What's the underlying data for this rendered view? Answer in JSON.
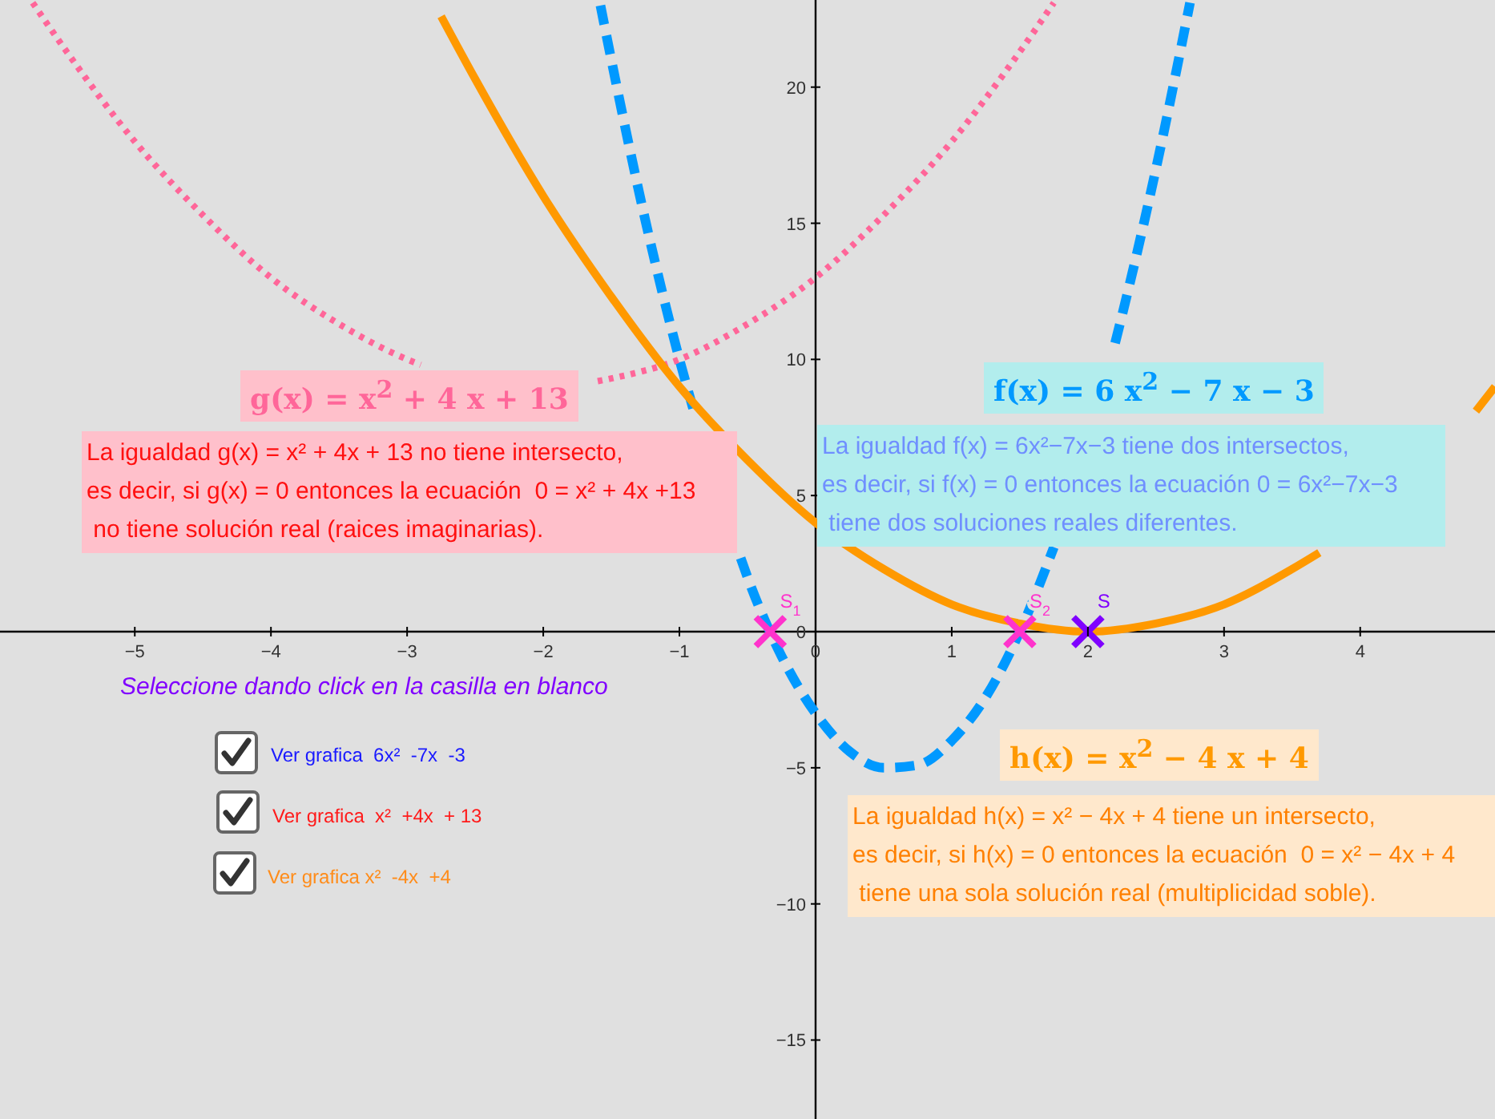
{
  "chart_data": {
    "type": "line",
    "xlim": [
      -5.99,
      4.99
    ],
    "ylim": [
      -17.9,
      23.2
    ],
    "xticks": [
      -5,
      -4,
      -3,
      -2,
      -1,
      0,
      1,
      2,
      3,
      4
    ],
    "yticks": [
      -15,
      -10,
      -5,
      0,
      5,
      10,
      15,
      20
    ],
    "marker": "none",
    "series": [
      {
        "name": "f(x) = 6 x$^{2}$ − 7 x − 3",
        "color": "#0099ff",
        "line_style": "dashed",
        "x": [
          -1.58,
          -1.5,
          -1.25,
          -1,
          -0.9,
          -0.75,
          -0.55,
          -0.5,
          -0.25,
          0,
          0.25,
          0.5,
          0.75,
          1,
          1.25,
          1.5,
          1.75,
          2,
          2.2,
          2.25,
          2.5,
          2.75
        ],
        "values": [
          23.0,
          21,
          15.1,
          10,
          8.2,
          null,
          2.7,
          2,
          -0.9,
          -3,
          -4.4,
          -5,
          -4.9,
          -4,
          -2.4,
          0,
          3.1,
          null,
          10.6,
          11.6,
          17,
          23.1
        ]
      },
      {
        "name": "g(x) = x$^{2}$ + 4 x + 13",
        "color": "#ff6699",
        "line_style": "dotted",
        "x": [
          -5.75,
          -5.5,
          -5,
          -4.5,
          -4,
          -3.5,
          -3,
          -2.9,
          -2.5,
          -2,
          -1.6,
          -1.5,
          -1,
          -0.5,
          0,
          0.5,
          1,
          1.5,
          1.75
        ],
        "values": [
          23.1,
          21.3,
          18,
          15.3,
          13,
          11.3,
          10,
          9.8,
          null,
          null,
          9.2,
          9.3,
          10,
          11.3,
          13,
          15.3,
          18,
          21.3,
          23.1
        ]
      },
      {
        "name": "h(x) = x$^{2}$ − 4 x + 4",
        "color": "#ff9900",
        "line_style": "solid",
        "x": [
          -2.75,
          -2.5,
          -2,
          -1.5,
          -1,
          -0.5,
          0,
          0.5,
          1,
          1.5,
          2,
          2.5,
          3,
          3.5,
          3.7,
          4,
          4.5,
          4.85,
          4.99
        ],
        "values": [
          22.6,
          20.3,
          16,
          12.3,
          9,
          6.3,
          4,
          2.3,
          1,
          0.3,
          0,
          0.3,
          1,
          2.3,
          2.9,
          null,
          null,
          8.1,
          9
        ]
      },
      {
        "type": "scatter",
        "color": "#ff33cc",
        "marker": "cross",
        "x": [
          -0.333,
          1.5
        ],
        "values": [
          0,
          0
        ]
      },
      {
        "type": "scatter",
        "color": "#7f00ff",
        "marker": "cross",
        "x": [
          2
        ],
        "values": [
          0
        ]
      }
    ],
    "annotations": [
      "La igualdad g(x) = x² + 4x + 13 no tiene intersecto,\nes decir, si g(x) = 0 entonces la ecuación  0 = x² + 4x +13\n no tiene solución real (raices imaginarias).",
      "La igualdad f(x) = 6x²−7x−3 tiene dos intersectos,\nes decir, si f(x) = 0 entonces la ecuación 0 = 6x²−7x−3\n tiene dos soluciones reales diferentes.",
      "La igualdad h(x) = x² − 4x + 4 tiene un intersecto,\nes decir, si h(x) = 0 entonces la ecuación  0 = x² − 4x + 4\n tiene una sola solución real (multiplicidad soble).",
      "Seleccione dando click en la casilla en blanco",
      "Ver grafica  6x²  -7x  -3",
      "Ver grafica  x²  +4x  + 13",
      "Ver grafica x²  -4x  +4",
      {
        "text": "S$_{1}$",
        "x": -0.333,
        "y": 0
      },
      {
        "text": "S$_{2}$",
        "x": 1.5,
        "y": 0
      },
      {
        "text": "S",
        "x": 2,
        "y": 0
      }
    ]
  }
}
